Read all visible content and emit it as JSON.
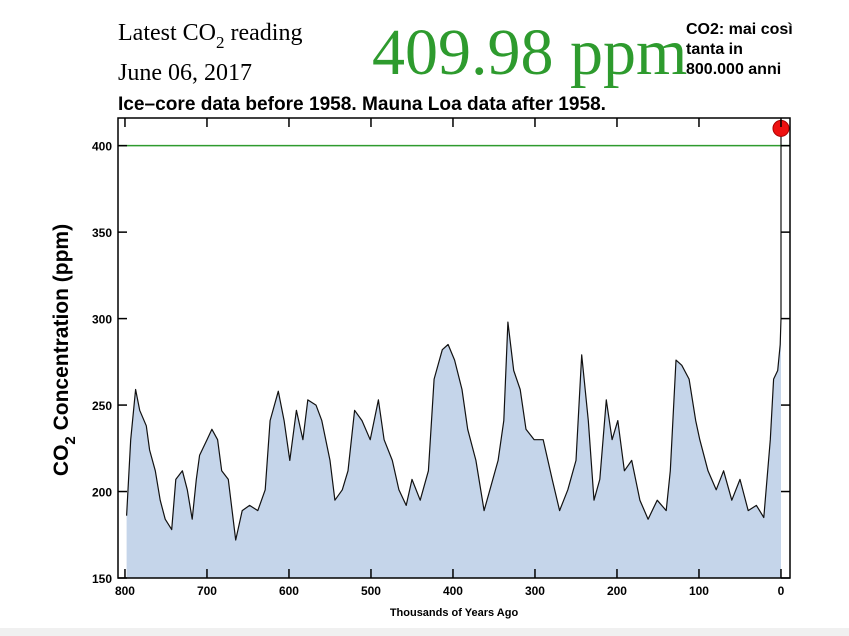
{
  "chart_data": {
    "type": "area",
    "reading_label": "Latest CO",
    "reading_label_sub": "2",
    "reading_label_end": " reading",
    "reading_date": "June 06, 2017",
    "latest_value": 409.98,
    "latest_unit": "ppm",
    "latest_color": "#2e9b2e",
    "subtitle": "Ice–core data before 1958. Mauna Loa data after 1958.",
    "annotation": [
      "CO2: mai così",
      "tanta in",
      "800.000 anni"
    ],
    "ylabel": "CO",
    "ylabel_sub": "2",
    "ylabel_end": " Concentration (ppm)",
    "xlabel": "Thousands of Years Ago",
    "xlim": [
      808.5,
      -11
    ],
    "ylim": [
      150,
      416
    ],
    "xticks": [
      800,
      700,
      600,
      500,
      400,
      300,
      200,
      100,
      0
    ],
    "yticks": [
      150,
      200,
      250,
      300,
      350,
      400
    ],
    "reference_line": 400,
    "reference_color": "#2e9b2e",
    "marker_color": "#ee1111",
    "series": [
      {
        "name": "CO2",
        "color": "#111111",
        "fill": "#c5d5ea",
        "x": [
          798,
          793,
          787,
          782,
          774,
          770,
          763,
          757,
          751,
          743,
          738,
          730,
          724,
          718,
          713,
          709,
          700,
          694,
          687,
          682,
          674,
          665,
          657,
          648,
          638,
          629,
          623,
          613,
          606,
          599,
          591,
          583,
          577,
          567,
          560,
          550,
          544,
          535,
          528,
          520,
          511,
          501,
          491,
          484,
          474,
          466,
          457,
          450,
          440,
          430,
          423,
          413,
          406,
          398,
          389,
          382,
          372,
          362,
          355,
          345,
          338,
          333,
          326,
          318,
          311,
          301,
          290,
          279,
          270,
          260,
          250,
          243,
          235,
          228,
          221,
          213,
          206,
          199,
          191,
          182,
          172,
          162,
          151,
          140,
          135,
          128,
          121,
          112,
          104,
          99,
          89,
          79,
          70,
          60,
          50,
          40,
          30,
          21,
          13,
          9,
          4,
          1,
          0,
          0
        ],
        "values": [
          186,
          230,
          259,
          247,
          238,
          224,
          212,
          195,
          184,
          178,
          207,
          212,
          201,
          184,
          207,
          221,
          230,
          236,
          230,
          212,
          207,
          172,
          189,
          192,
          189,
          201,
          241,
          258,
          241,
          218,
          247,
          230,
          253,
          250,
          241,
          218,
          195,
          201,
          212,
          247,
          241,
          230,
          253,
          230,
          218,
          201,
          192,
          207,
          195,
          212,
          265,
          282,
          285,
          276,
          259,
          236,
          218,
          189,
          201,
          218,
          241,
          298,
          270,
          259,
          236,
          230,
          230,
          207,
          189,
          201,
          218,
          279,
          241,
          195,
          207,
          253,
          230,
          241,
          212,
          218,
          195,
          184,
          195,
          189,
          212,
          276,
          273,
          265,
          241,
          230,
          212,
          201,
          212,
          195,
          207,
          189,
          192,
          185,
          230,
          265,
          270,
          285,
          300,
          409.98
        ]
      }
    ]
  }
}
